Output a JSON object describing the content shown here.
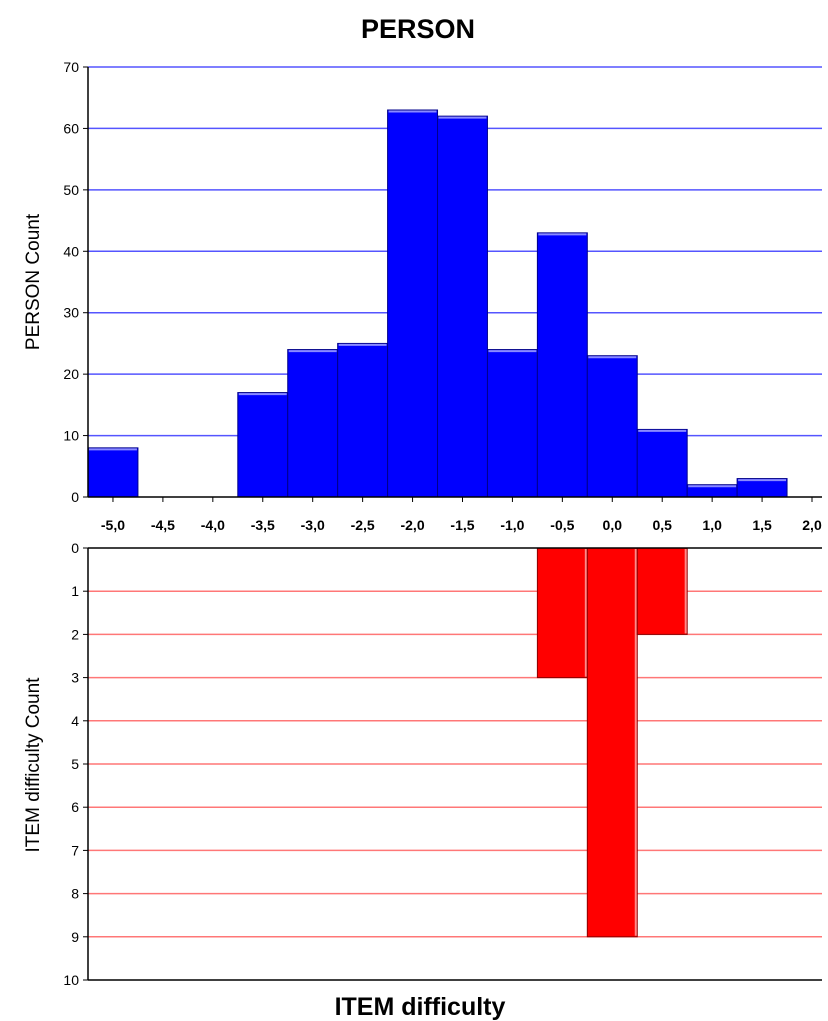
{
  "chart_data": [
    {
      "type": "bar",
      "title": "PERSON",
      "ylabel": "PERSON Count",
      "ylim": [
        0,
        70
      ],
      "yticks": [
        "0",
        "10",
        "20",
        "30",
        "40",
        "50",
        "60",
        "70"
      ],
      "xlim": [
        -5.25,
        2.1
      ],
      "xticks": [
        "-5,0",
        "-4,5",
        "-4,0",
        "-3,5",
        "-3,0",
        "-2,5",
        "-2,0",
        "-1,5",
        "-1,0",
        "-0,5",
        "0,0",
        "0,5",
        "1,0",
        "1,5",
        "2,0"
      ],
      "x": [
        -5.0,
        -3.5,
        -3.0,
        -2.5,
        -2.0,
        -1.5,
        -1.0,
        -0.5,
        0.0,
        0.5,
        1.0,
        1.5
      ],
      "values": [
        8,
        17,
        24,
        25,
        63,
        62,
        24,
        43,
        23,
        11,
        2,
        3
      ],
      "bar_width": 0.5,
      "bar_color": "#0000ff",
      "grid_color": "#5555ff",
      "grid": true
    },
    {
      "type": "bar",
      "orientation": "downward",
      "xlabel": "ITEM difficulty",
      "ylabel": "ITEM difficulty Count",
      "ylim": [
        0,
        10
      ],
      "yticks": [
        "0",
        "1",
        "2",
        "3",
        "4",
        "5",
        "6",
        "7",
        "8",
        "9",
        "10"
      ],
      "x": [
        -0.5,
        0.0,
        0.5
      ],
      "values": [
        3,
        9,
        2
      ],
      "bar_width": 0.5,
      "bar_color": "#ff0000",
      "grid_color": "#ff7777",
      "grid": true
    }
  ]
}
